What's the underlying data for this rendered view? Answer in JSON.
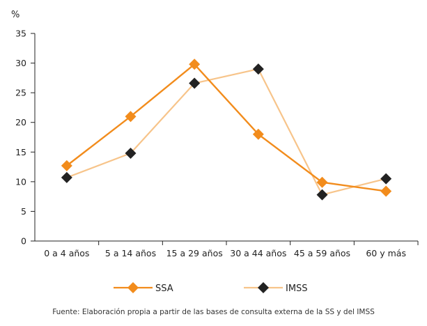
{
  "chart_data": {
    "type": "line",
    "unit_label": "%",
    "categories": [
      "0 a 4 años",
      "5 a 14 años",
      "15 a 29 años",
      "30 a 44 años",
      "45 a 59 años",
      "60 y más"
    ],
    "series": [
      {
        "name": "SSA",
        "values": [
          12.7,
          21.0,
          29.8,
          18.0,
          9.9,
          8.4
        ],
        "color": "#f28c1c",
        "link_color": "#f28c1c",
        "marker_color": "#f28c1c"
      },
      {
        "name": "IMSS",
        "values": [
          10.7,
          14.8,
          26.6,
          29.0,
          7.8,
          10.5
        ],
        "color": "#f7c48a",
        "link_color": "#f7c48a",
        "marker_color": "#222222"
      }
    ],
    "ylim": [
      0,
      35
    ],
    "yticks": [
      0,
      5,
      10,
      15,
      20,
      25,
      30,
      35
    ],
    "legend_position": "bottom",
    "grid": false
  },
  "footer": {
    "source": "Fuente: Elaboración propia a partir de las bases de consulta externa de la SS y del IMSS"
  }
}
